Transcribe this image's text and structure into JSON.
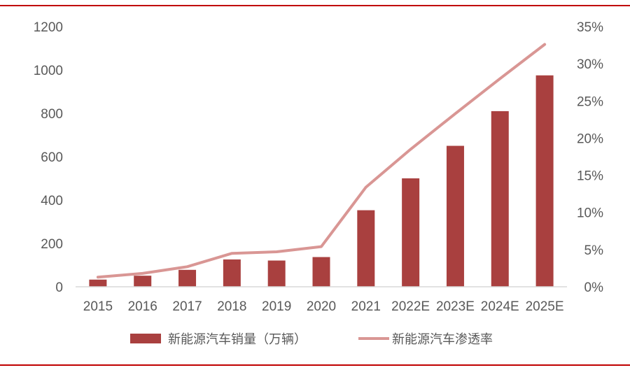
{
  "colors": {
    "rule": "#C00000",
    "bar": "#A9403F",
    "line": "#D99694",
    "text": "#595959"
  },
  "chart_data": {
    "type": "bar",
    "categories": [
      "2015",
      "2016",
      "2017",
      "2018",
      "2019",
      "2020",
      "2021",
      "2022E",
      "2023E",
      "2024E",
      "2025E"
    ],
    "series": [
      {
        "name": "新能源汽车销量（万辆）",
        "type": "bar",
        "axis": "left",
        "values": [
          33,
          51,
          78,
          126,
          121,
          137,
          353,
          500,
          650,
          810,
          975
        ]
      },
      {
        "name": "新能源汽车渗透率",
        "type": "line",
        "axis": "right",
        "unit": "%",
        "values": [
          1.3,
          1.8,
          2.7,
          4.5,
          4.7,
          5.4,
          13.4,
          18.5,
          23.3,
          28.0,
          32.6
        ]
      }
    ],
    "y_left": {
      "ticks": [
        "0",
        "200",
        "400",
        "600",
        "800",
        "1000",
        "1200"
      ],
      "ylim": [
        0,
        1200
      ]
    },
    "y_right": {
      "ticks": [
        "0%",
        "5%",
        "10%",
        "15%",
        "20%",
        "25%",
        "30%",
        "35%"
      ],
      "ylim": [
        0,
        35
      ]
    },
    "grid": false,
    "legend_position": "bottom"
  }
}
